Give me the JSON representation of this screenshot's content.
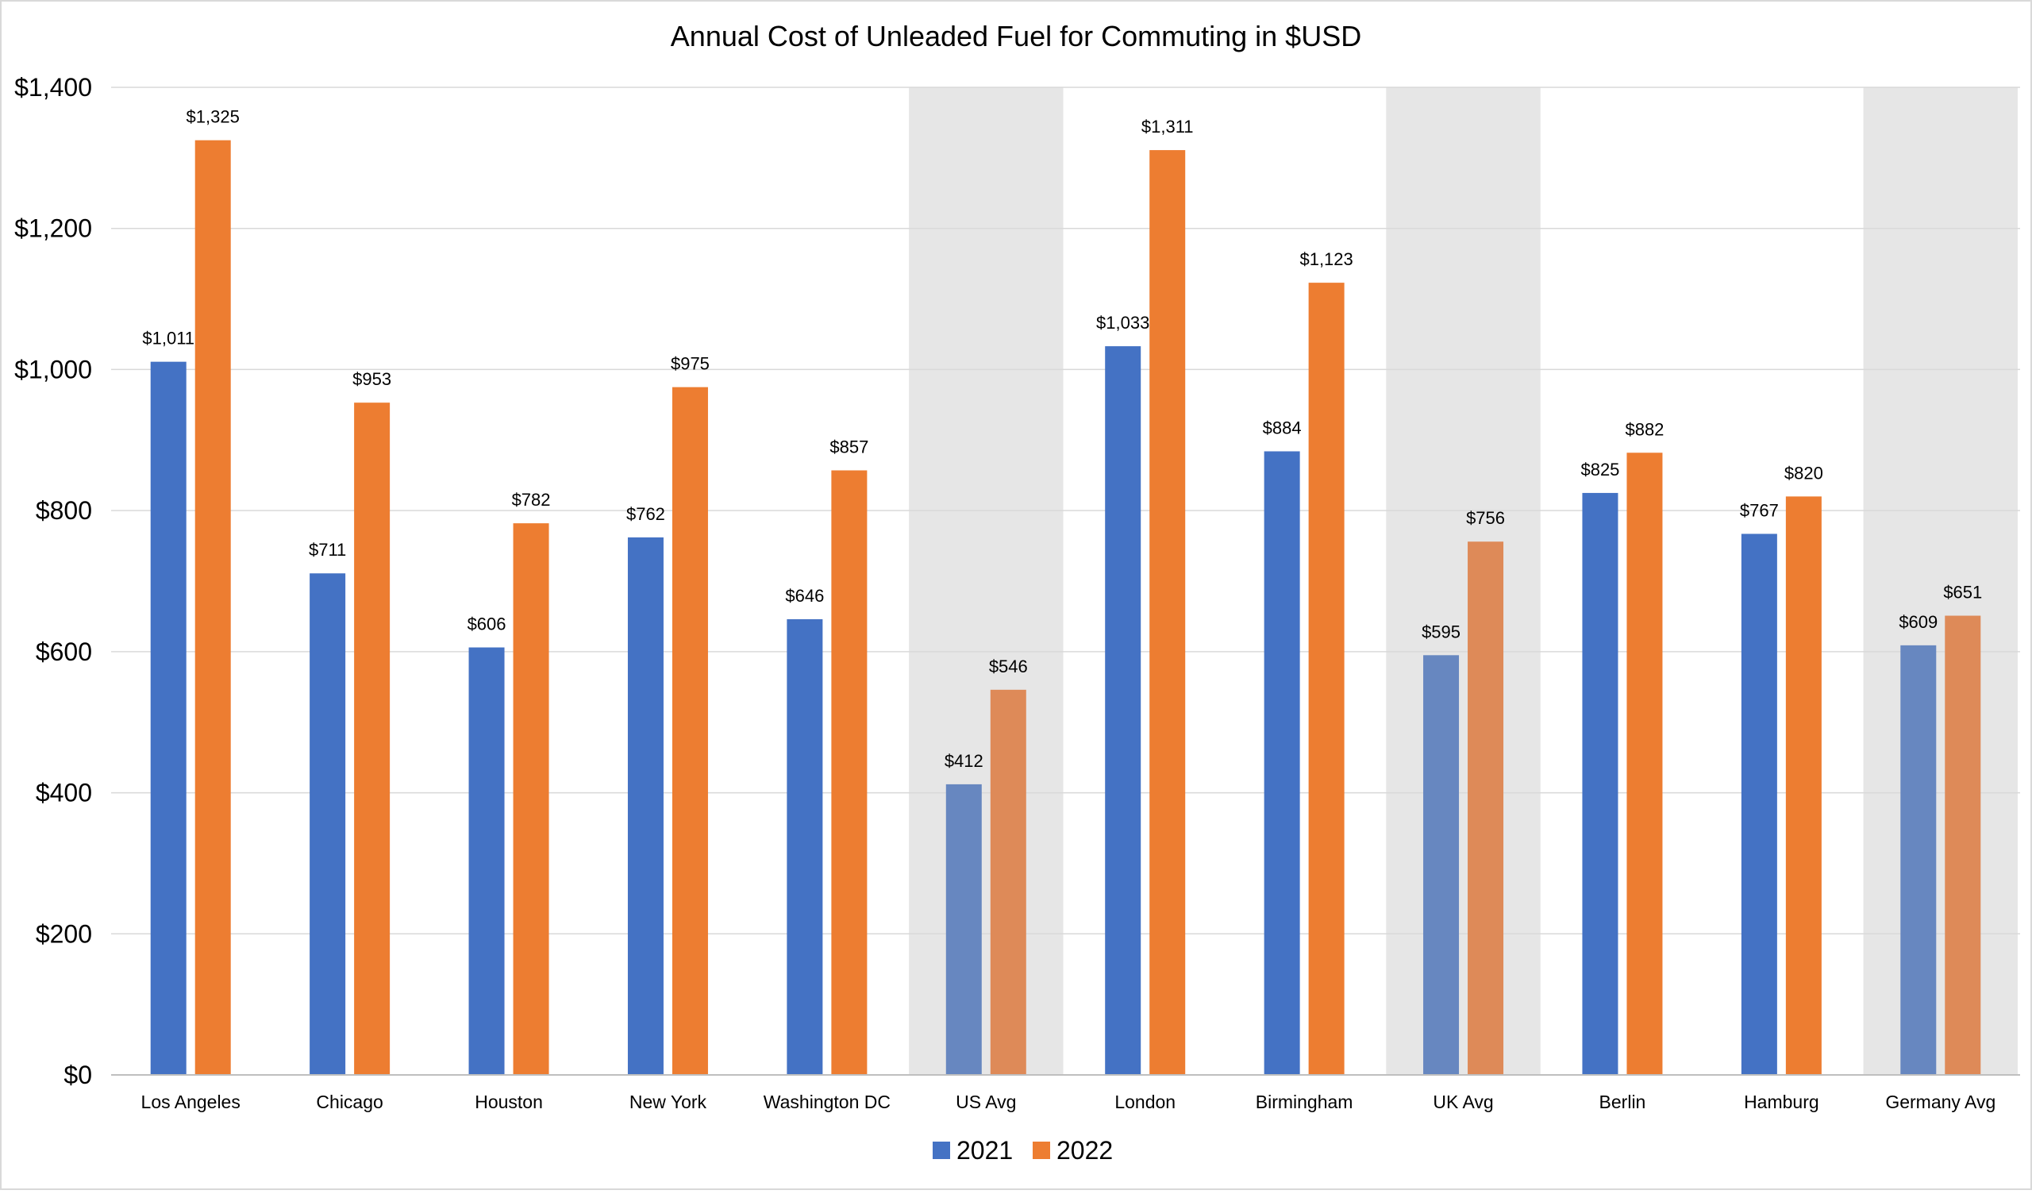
{
  "chart_data": {
    "type": "bar",
    "title": "Annual Cost of Unleaded Fuel for Commuting in $USD",
    "xlabel": "",
    "ylabel": "",
    "ylim": [
      0,
      1400
    ],
    "ytick_step": 200,
    "ytick_labels": [
      "$0",
      "$200",
      "$400",
      "$600",
      "$800",
      "$1,000",
      "$1,200",
      "$1,400"
    ],
    "grid": true,
    "legend_position": "bottom-center",
    "categories": [
      "Los Angeles",
      "Chicago",
      "Houston",
      "New York",
      "Washington DC",
      "US Avg",
      "London",
      "Birmingham",
      "UK Avg",
      "Berlin",
      "Hamburg",
      "Germany Avg"
    ],
    "highlighted_categories": [
      "US Avg",
      "UK Avg",
      "Germany Avg"
    ],
    "series": [
      {
        "name": "2021",
        "color": "#4472C4",
        "highlight_color": "#6787C0",
        "values": [
          1011,
          711,
          606,
          762,
          646,
          412,
          1033,
          884,
          595,
          825,
          767,
          609
        ],
        "labels": [
          "$1,011",
          "$711",
          "$606",
          "$762",
          "$646",
          "$412",
          "$1,033",
          "$884",
          "$595",
          "$825",
          "$767",
          "$609"
        ]
      },
      {
        "name": "2022",
        "color": "#ED7D31",
        "highlight_color": "#DE8A58",
        "values": [
          1325,
          953,
          782,
          975,
          857,
          546,
          1311,
          1123,
          756,
          882,
          820,
          651
        ],
        "labels": [
          "$1,325",
          "$953",
          "$782",
          "$975",
          "$857",
          "$546",
          "$1,311",
          "$1,123",
          "$756",
          "$882",
          "$820",
          "$651"
        ]
      }
    ],
    "colors": {
      "gridline": "#D9D9D9",
      "highlight_band": "#E6E6E6",
      "axis": "#BFBFBF",
      "border": "#D9D9D9"
    }
  }
}
